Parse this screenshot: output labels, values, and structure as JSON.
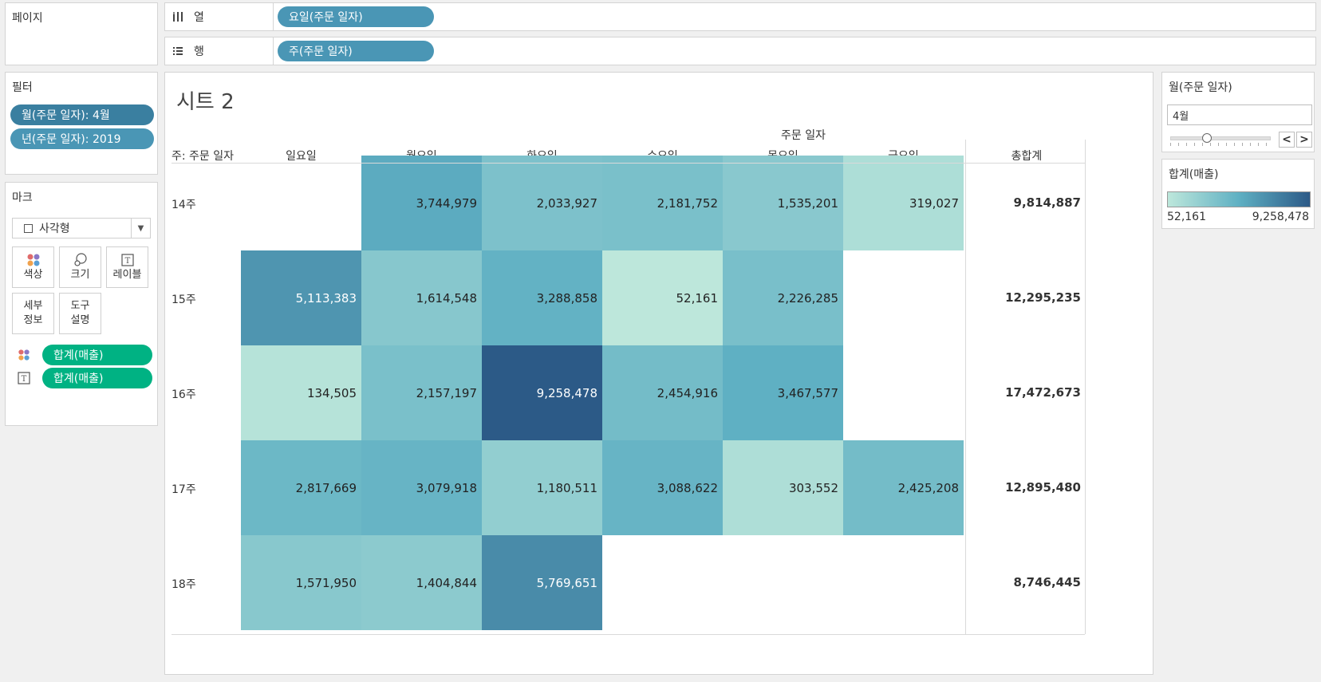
{
  "pages": {
    "title": "페이지"
  },
  "columns_shelf": {
    "label": "열",
    "pill": "요일(주문 일자)"
  },
  "rows_shelf": {
    "label": "행",
    "pill": "주(주문 일자)"
  },
  "filters": {
    "title": "필터",
    "items": [
      "월(주문 일자): 4월",
      "년(주문 일자): 2019"
    ]
  },
  "marks": {
    "title": "마크",
    "type": "사각형",
    "buttons": {
      "color": "색상",
      "size": "크기",
      "label": "레이블",
      "detail_1": "세부",
      "detail_2": "정보",
      "tooltip_1": "도구",
      "tooltip_2": "설명"
    },
    "encodings": [
      {
        "icon": "color-dots-icon",
        "pill": "합계(매출)"
      },
      {
        "icon": "label-text-icon",
        "pill": "합계(매출)"
      }
    ]
  },
  "sheet": {
    "title": "시트 2",
    "column_header_title": "주문 일자",
    "row_header_title": "주: 주문 일자",
    "grand_total_label": "총합계"
  },
  "chart_data": {
    "type": "heatmap",
    "columns": [
      "일요일",
      "월요일",
      "화요일",
      "수요일",
      "목요일",
      "금요일"
    ],
    "rows": [
      "14주",
      "15주",
      "16주",
      "17주",
      "18주"
    ],
    "values": [
      [
        null,
        3744979,
        2033927,
        2181752,
        1535201,
        319027
      ],
      [
        5113383,
        1614548,
        3288858,
        52161,
        2226285,
        null
      ],
      [
        134505,
        2157197,
        9258478,
        2454916,
        3467577,
        null
      ],
      [
        2817669,
        3079918,
        1180511,
        3088622,
        303552,
        2425208
      ],
      [
        1571950,
        1404844,
        5769651,
        null,
        null,
        null
      ]
    ],
    "row_totals": [
      9814887,
      12295235,
      17472673,
      12895480,
      8746445
    ],
    "color_range": [
      52161,
      9258478
    ],
    "colors": [
      "#bde7db",
      "#5fb0c3",
      "#2c5a87"
    ]
  },
  "month_filter": {
    "title": "월(주문 일자)",
    "value": "4월",
    "prev": "<",
    "next": ">"
  },
  "legend": {
    "title": "합계(매출)",
    "min_label": "52,161",
    "max_label": "9,258,478"
  }
}
